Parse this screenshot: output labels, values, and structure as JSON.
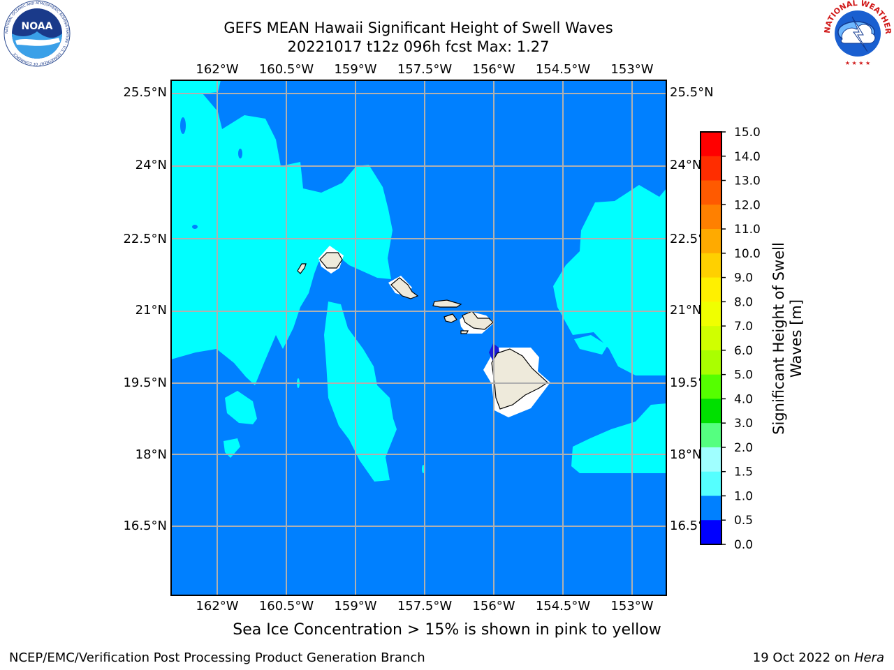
{
  "title": {
    "line1": "GEFS MEAN Hawaii Significant Height of Swell Waves",
    "line2": "20221017 t12z 096h fcst   Max: 1.27"
  },
  "logos": {
    "left": "noaa-logo",
    "left_text": "NOAA",
    "left_ring_text": "NATIONAL OCEANIC AND ATMOSPHERIC ADMINISTRATION · U.S. DEPARTMENT OF COMMERCE",
    "right": "nws-logo",
    "right_ring_text": "NATIONAL WEATHER SERVICE"
  },
  "map": {
    "lon_labels": [
      "162°W",
      "160.5°W",
      "159°W",
      "157.5°W",
      "156°W",
      "154.5°W",
      "153°W"
    ],
    "lat_labels": [
      "25.5°N",
      "24°N",
      "22.5°N",
      "21°N",
      "19.5°N",
      "18°N",
      "16.5°N"
    ],
    "colors": {
      "ocean": "#0080ff",
      "swell_1_5": "#00ffff",
      "land": "#eeeadb",
      "grid": "#b0b0b0",
      "low": "#2020e0"
    }
  },
  "colorbar": {
    "title": "Significant Height of Swell Waves [m]",
    "ticks": [
      "15.0",
      "14.0",
      "13.0",
      "12.0",
      "11.0",
      "10.0",
      "9.0",
      "8.0",
      "7.0",
      "6.0",
      "5.0",
      "4.0",
      "3.0",
      "2.0",
      "1.5",
      "1.0",
      "0.5",
      "0.0"
    ],
    "colors": [
      "#ff0000",
      "#ff2d00",
      "#ff5a00",
      "#ff8000",
      "#ffaa00",
      "#ffd000",
      "#fff000",
      "#f0ff00",
      "#d0ff00",
      "#aaff00",
      "#55ff00",
      "#00e000",
      "#55ff80",
      "#a0ffff",
      "#55ffff",
      "#00ffff",
      "#0080ff",
      "#0000ff"
    ]
  },
  "caption": "Sea Ice Concentration > 15% is shown in pink to yellow",
  "footer": {
    "left": "NCEP/EMC/Verification Post Processing Product Generation Branch",
    "right_prefix": "19 Oct 2022 on ",
    "right_machine": "Hera"
  }
}
